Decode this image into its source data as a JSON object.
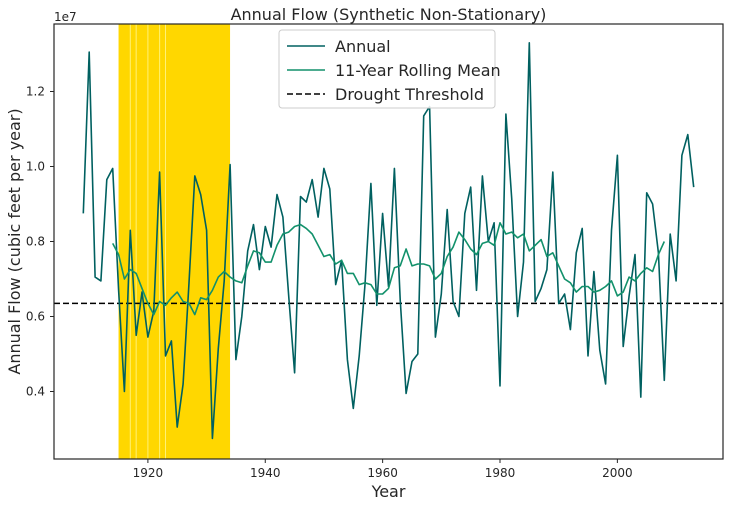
{
  "chart_data": {
    "type": "line",
    "title": "Annual Flow (Synthetic Non-Stationary)",
    "xlabel": "Year",
    "ylabel": "Annual Flow (cubic feet per year)",
    "y_offset_label": "1e7",
    "xlim": [
      1904,
      2018
    ],
    "ylim": [
      2200000,
      13800000
    ],
    "xticks": [
      1920,
      1940,
      1960,
      1980,
      2000
    ],
    "xtick_labels": [
      "1920",
      "1940",
      "1960",
      "1980",
      "2000"
    ],
    "yticks": [
      4000000,
      6000000,
      8000000,
      10000000,
      12000000
    ],
    "ytick_labels": [
      "0.4",
      "0.6",
      "0.8",
      "1.0",
      "1.2"
    ],
    "grid": false,
    "legend_position": "upper-center",
    "drought_span": {
      "start": 1915,
      "end": 1934,
      "color": "#FFD700"
    },
    "drought_span_inner_lines": [
      1917,
      1918,
      1920,
      1922,
      1923
    ],
    "drought_threshold": 6350000,
    "series": [
      {
        "name": "Annual",
        "color": "#006060",
        "x": [
          1909,
          1910,
          1911,
          1912,
          1913,
          1914,
          1915,
          1916,
          1917,
          1918,
          1919,
          1920,
          1921,
          1922,
          1923,
          1924,
          1925,
          1926,
          1927,
          1928,
          1929,
          1930,
          1931,
          1932,
          1933,
          1934,
          1935,
          1936,
          1937,
          1938,
          1939,
          1940,
          1941,
          1942,
          1943,
          1944,
          1945,
          1946,
          1947,
          1948,
          1949,
          1950,
          1951,
          1952,
          1953,
          1954,
          1955,
          1956,
          1957,
          1958,
          1959,
          1960,
          1961,
          1962,
          1963,
          1964,
          1965,
          1966,
          1967,
          1968,
          1969,
          1970,
          1971,
          1972,
          1973,
          1974,
          1975,
          1976,
          1977,
          1978,
          1979,
          1980,
          1981,
          1982,
          1983,
          1984,
          1985,
          1986,
          1987,
          1988,
          1989,
          1990,
          1991,
          1992,
          1993,
          1994,
          1995,
          1996,
          1997,
          1998,
          1999,
          2000,
          2001,
          2002,
          2003,
          2004,
          2005,
          2006,
          2007,
          2008,
          2009,
          2010,
          2011,
          2012,
          2013
        ],
        "values": [
          8750000,
          13050000,
          7050000,
          6950000,
          9650000,
          9950000,
          6700000,
          4000000,
          8300000,
          5500000,
          6650000,
          5450000,
          6150000,
          9850000,
          4950000,
          5350000,
          3050000,
          4200000,
          6900000,
          9750000,
          9250000,
          8300000,
          2750000,
          5150000,
          6950000,
          10050000,
          4850000,
          6000000,
          7750000,
          8450000,
          7250000,
          8400000,
          7850000,
          9250000,
          8650000,
          6550000,
          4500000,
          9200000,
          9050000,
          9650000,
          8650000,
          9950000,
          9400000,
          6850000,
          7500000,
          4850000,
          3550000,
          4950000,
          6850000,
          9550000,
          6300000,
          8750000,
          6800000,
          9950000,
          6450000,
          3950000,
          4800000,
          5000000,
          11350000,
          11600000,
          5450000,
          6600000,
          8850000,
          6400000,
          6000000,
          8750000,
          9450000,
          6700000,
          9750000,
          8000000,
          8500000,
          4150000,
          11400000,
          9150000,
          6000000,
          7450000,
          13300000,
          6400000,
          6750000,
          7250000,
          9850000,
          6350000,
          6600000,
          5650000,
          7700000,
          8350000,
          4950000,
          7200000,
          5100000,
          4200000,
          8300000,
          10300000,
          5200000,
          6550000,
          7650000,
          3850000,
          9300000,
          9000000,
          7700000,
          4300000,
          8200000,
          6950000,
          10300000,
          10850000,
          9450000
        ]
      },
      {
        "name": "11-Year Rolling Mean",
        "color": "#12916B",
        "x": [
          1914,
          1915,
          1916,
          1917,
          1918,
          1919,
          1920,
          1921,
          1922,
          1923,
          1924,
          1925,
          1926,
          1927,
          1928,
          1929,
          1930,
          1931,
          1932,
          1933,
          1934,
          1935,
          1936,
          1937,
          1938,
          1939,
          1940,
          1941,
          1942,
          1943,
          1944,
          1945,
          1946,
          1947,
          1948,
          1949,
          1950,
          1951,
          1952,
          1953,
          1954,
          1955,
          1956,
          1957,
          1958,
          1959,
          1960,
          1961,
          1962,
          1963,
          1964,
          1965,
          1966,
          1967,
          1968,
          1969,
          1970,
          1971,
          1972,
          1973,
          1974,
          1975,
          1976,
          1977,
          1978,
          1979,
          1980,
          1981,
          1982,
          1983,
          1984,
          1985,
          1986,
          1987,
          1988,
          1989,
          1990,
          1991,
          1992,
          1993,
          1994,
          1995,
          1996,
          1997,
          1998,
          1999,
          2000,
          2001,
          2002,
          2003,
          2004,
          2005,
          2006,
          2007,
          2008
        ],
        "values": [
          7950000,
          7650000,
          7000000,
          7250000,
          7150000,
          6750000,
          6350000,
          6050000,
          6400000,
          6300000,
          6500000,
          6650000,
          6400000,
          6350000,
          6050000,
          6500000,
          6450000,
          6700000,
          7050000,
          7200000,
          7050000,
          6950000,
          6900000,
          7350000,
          7750000,
          7700000,
          7450000,
          7450000,
          7900000,
          8200000,
          8250000,
          8400000,
          8450000,
          8350000,
          8200000,
          7900000,
          7600000,
          7650000,
          7400000,
          7500000,
          7150000,
          7150000,
          6850000,
          6900000,
          6850000,
          6600000,
          6600000,
          6750000,
          7300000,
          7350000,
          7800000,
          7350000,
          7400000,
          7400000,
          7350000,
          7000000,
          7150000,
          7600000,
          7850000,
          8250000,
          8050000,
          7800000,
          7650000,
          7950000,
          8000000,
          7900000,
          8500000,
          8200000,
          8250000,
          8100000,
          8200000,
          7750000,
          7900000,
          8050000,
          7600000,
          7700000,
          7350000,
          7000000,
          6900000,
          6650000,
          6800000,
          6800000,
          6650000,
          6700000,
          6800000,
          6950000,
          6550000,
          6650000,
          7050000,
          6950000,
          7150000,
          7300000,
          7200000,
          7650000,
          8000000
        ]
      },
      {
        "name": "Drought Threshold",
        "color": "#000000",
        "dashed": true,
        "values": [
          6350000
        ]
      }
    ]
  }
}
